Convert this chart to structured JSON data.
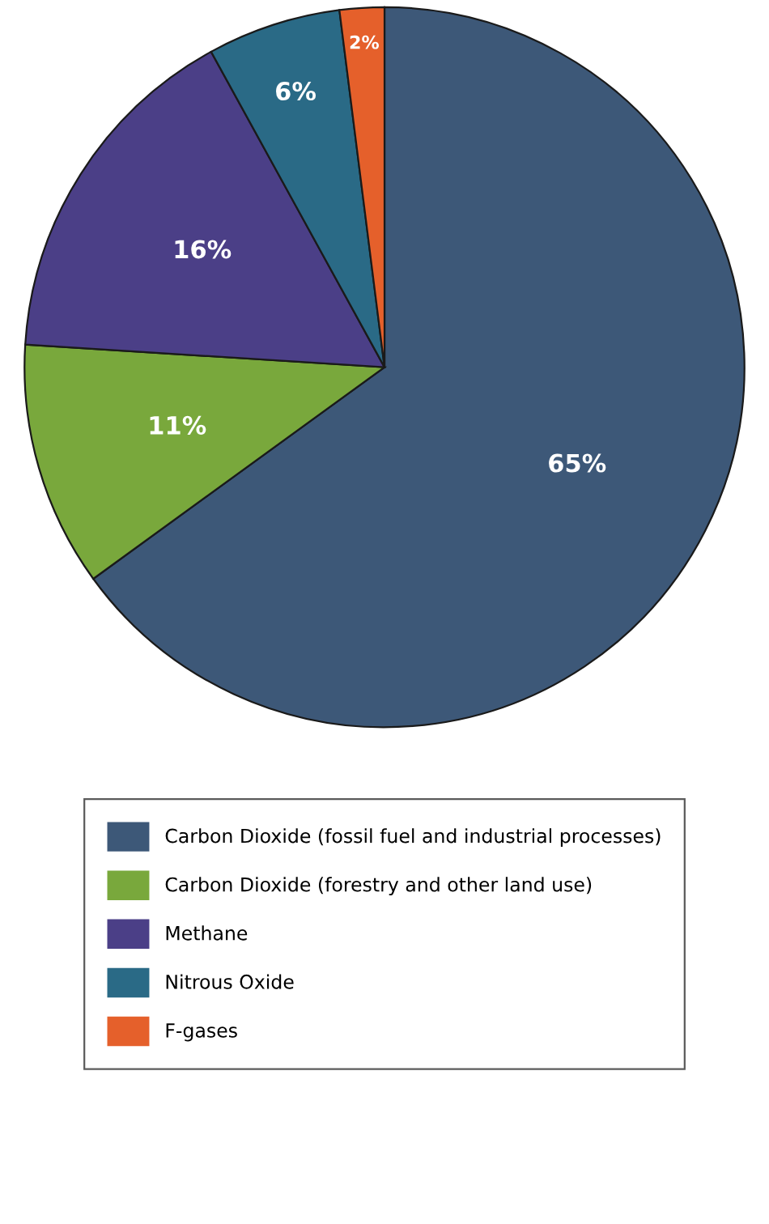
{
  "chart_data": {
    "type": "pie",
    "categories": [
      "Carbon Dioxide (fossil fuel and industrial processes)",
      "Carbon Dioxide (forestry and other land use)",
      "Methane",
      "Nitrous Oxide",
      "F-gases"
    ],
    "values": [
      65,
      11,
      16,
      6,
      2
    ],
    "colors": [
      "#3d5878",
      "#79a83c",
      "#4b3f87",
      "#2a6a86",
      "#e5602b"
    ],
    "value_labels": [
      "65%",
      "11%",
      "16%",
      "6%",
      "2%"
    ],
    "legend": "bottom"
  }
}
